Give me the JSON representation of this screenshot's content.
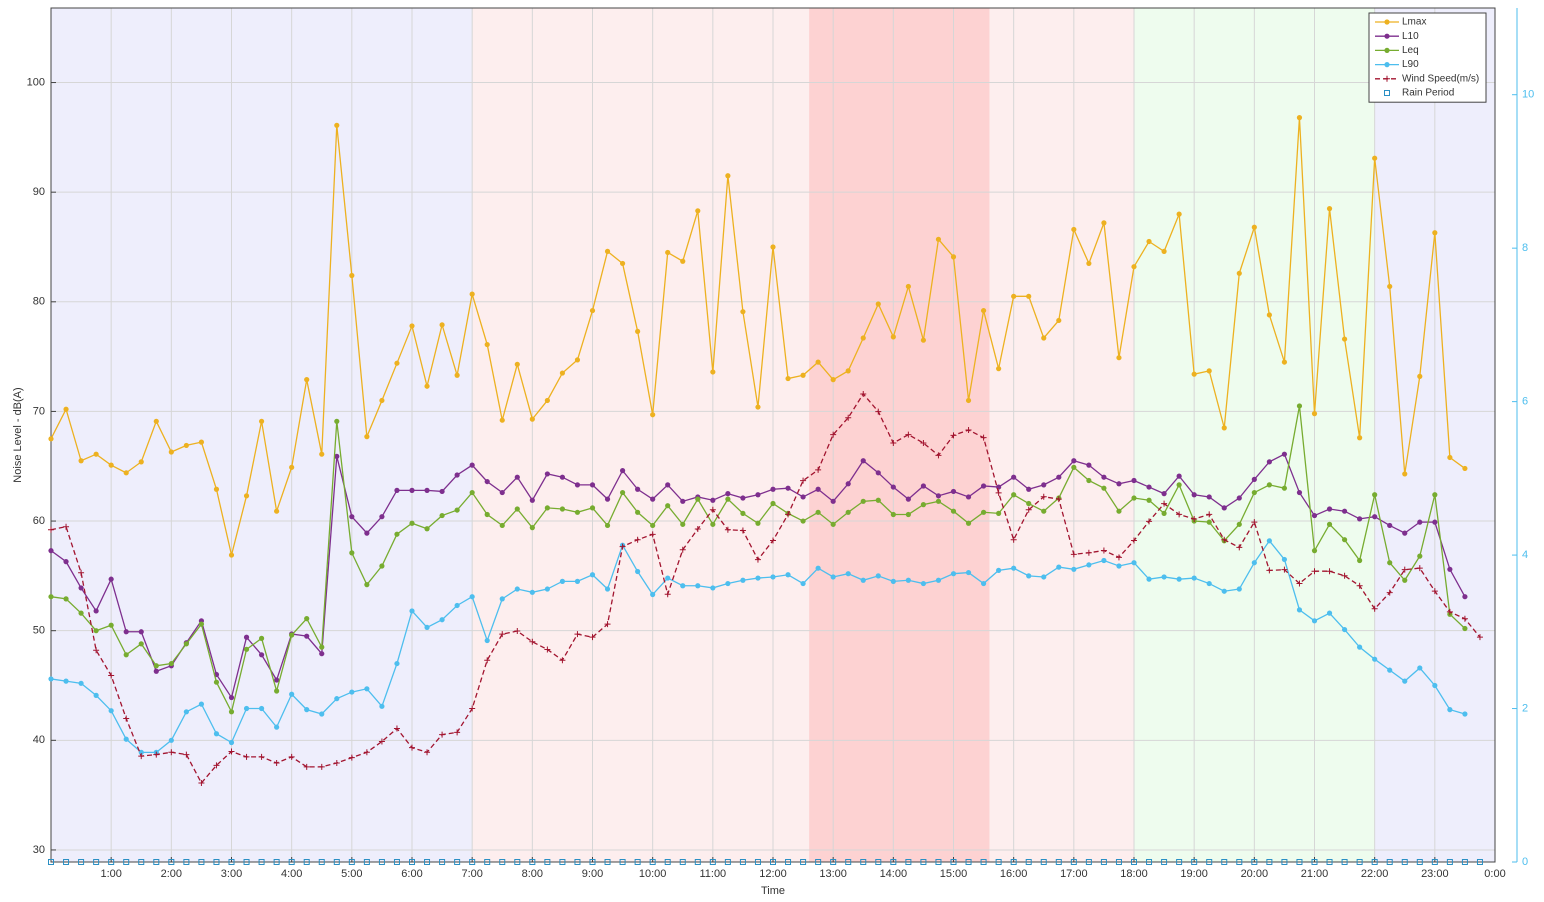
{
  "chart_data": {
    "type": "line",
    "x_label": "Time",
    "y_label": "Noise Level - dB(A)",
    "x": [
      0,
      0.25,
      0.5,
      0.75,
      1,
      1.25,
      1.5,
      1.75,
      2,
      2.25,
      2.5,
      2.75,
      3,
      3.25,
      3.5,
      3.75,
      4,
      4.25,
      4.5,
      4.75,
      5,
      5.25,
      5.5,
      5.75,
      6,
      6.25,
      6.5,
      6.75,
      7,
      7.25,
      7.5,
      7.75,
      8,
      8.25,
      8.5,
      8.75,
      9,
      9.25,
      9.5,
      9.75,
      10,
      10.25,
      10.5,
      10.75,
      11,
      11.25,
      11.5,
      11.75,
      12,
      12.25,
      12.5,
      12.75,
      13,
      13.25,
      13.5,
      13.75,
      14,
      14.25,
      14.5,
      14.75,
      15,
      15.25,
      15.5,
      15.75,
      16,
      16.25,
      16.5,
      16.75,
      17,
      17.25,
      17.5,
      17.75,
      18,
      18.25,
      18.5,
      18.75,
      19,
      19.25,
      19.5,
      19.75,
      20,
      20.25,
      20.5,
      20.75,
      21,
      21.25,
      21.5,
      21.75,
      22,
      22.25,
      22.5,
      22.75,
      23,
      23.25,
      23.5,
      23.75
    ],
    "xlim": [
      0,
      24
    ],
    "xticks": [
      {
        "value": 1,
        "label": "1:00"
      },
      {
        "value": 2,
        "label": "2:00"
      },
      {
        "value": 3,
        "label": "3:00"
      },
      {
        "value": 4,
        "label": "4:00"
      },
      {
        "value": 5,
        "label": "5:00"
      },
      {
        "value": 6,
        "label": "6:00"
      },
      {
        "value": 7,
        "label": "7:00"
      },
      {
        "value": 8,
        "label": "8:00"
      },
      {
        "value": 9,
        "label": "9:00"
      },
      {
        "value": 10,
        "label": "10:00"
      },
      {
        "value": 11,
        "label": "11:00"
      },
      {
        "value": 12,
        "label": "12:00"
      },
      {
        "value": 13,
        "label": "13:00"
      },
      {
        "value": 14,
        "label": "14:00"
      },
      {
        "value": 15,
        "label": "15:00"
      },
      {
        "value": 16,
        "label": "16:00"
      },
      {
        "value": 17,
        "label": "17:00"
      },
      {
        "value": 18,
        "label": "18:00"
      },
      {
        "value": 19,
        "label": "19:00"
      },
      {
        "value": 20,
        "label": "20:00"
      },
      {
        "value": 21,
        "label": "21:00"
      },
      {
        "value": 22,
        "label": "22:00"
      },
      {
        "value": 23,
        "label": "23:00"
      },
      {
        "value": 24,
        "label": "0:00"
      }
    ],
    "ylim": [
      28.9,
      106.8
    ],
    "yticks": [
      30,
      40,
      50,
      60,
      70,
      80,
      90,
      100
    ],
    "y2lim": [
      0,
      11.13
    ],
    "y2ticks": [
      0,
      2,
      4,
      6,
      8,
      10
    ],
    "grid": true,
    "legend": "upper right",
    "periods": [
      {
        "start": 0,
        "end": 7,
        "color": "#eeeefc"
      },
      {
        "start": 7,
        "end": 12.6,
        "color": "#fdeeee"
      },
      {
        "start": 12.6,
        "end": 15.6,
        "color": "#fdd2d2"
      },
      {
        "start": 15.6,
        "end": 18,
        "color": "#fdeeee"
      },
      {
        "start": 18,
        "end": 22,
        "color": "#eefcee"
      },
      {
        "start": 22,
        "end": 24,
        "color": "#eeeefc"
      }
    ],
    "series": [
      {
        "name": "Lmax",
        "color": "#EDB120",
        "marker": "circle",
        "values": [
          67.5,
          70.2,
          65.5,
          66.1,
          65.1,
          64.4,
          65.4,
          69.1,
          66.3,
          66.9,
          67.2,
          62.9,
          56.9,
          62.3,
          69.1,
          60.9,
          64.9,
          72.9,
          66.1,
          96.1,
          82.4,
          67.7,
          71.0,
          74.4,
          77.8,
          72.3,
          77.9,
          73.3,
          80.7,
          76.1,
          69.2,
          74.3,
          69.3,
          71.0,
          73.5,
          74.7,
          79.2,
          84.6,
          83.5,
          77.3,
          69.7,
          84.5,
          83.7,
          88.3,
          73.6,
          91.5,
          79.1,
          70.4,
          85.0,
          73.0,
          73.3,
          74.5,
          72.9,
          73.7,
          76.7,
          79.8,
          76.8,
          81.4,
          76.5,
          85.7,
          84.1,
          71.0,
          79.2,
          73.9,
          80.5,
          80.5,
          76.7,
          78.3,
          86.6,
          83.5,
          87.2,
          74.9,
          83.2,
          85.5,
          84.6,
          88.0,
          73.4,
          73.7,
          68.5,
          82.6,
          86.8,
          78.8,
          74.5,
          96.8,
          69.8,
          88.5,
          76.6,
          67.6,
          93.1,
          81.4,
          64.3,
          73.2,
          86.3,
          65.8,
          64.8,
          null
        ]
      },
      {
        "name": "L10",
        "color": "#7E2F8E",
        "marker": "circle",
        "values": [
          57.3,
          56.3,
          53.9,
          51.8,
          54.7,
          49.9,
          49.9,
          46.3,
          46.8,
          48.9,
          50.9,
          46.0,
          43.9,
          49.4,
          47.8,
          45.5,
          49.7,
          49.5,
          47.9,
          65.9,
          60.4,
          58.9,
          60.4,
          62.8,
          62.8,
          62.8,
          62.7,
          64.2,
          65.1,
          63.6,
          62.6,
          64.0,
          61.9,
          64.3,
          64.0,
          63.3,
          63.3,
          62.0,
          64.6,
          62.9,
          62.0,
          63.3,
          61.8,
          62.2,
          61.9,
          62.5,
          62.1,
          62.4,
          62.9,
          63.0,
          62.2,
          62.9,
          61.8,
          63.4,
          65.5,
          64.4,
          63.1,
          62.0,
          63.2,
          62.3,
          62.7,
          62.2,
          63.2,
          63.1,
          64.0,
          62.9,
          63.3,
          64.0,
          65.5,
          65.1,
          64.0,
          63.4,
          63.7,
          63.1,
          62.5,
          64.1,
          62.4,
          62.2,
          61.2,
          62.1,
          63.8,
          65.4,
          66.1,
          62.6,
          60.5,
          61.1,
          60.9,
          60.2,
          60.4,
          59.6,
          58.9,
          59.9,
          59.9,
          55.6,
          53.1,
          null
        ]
      },
      {
        "name": "Leq",
        "color": "#77AC30",
        "marker": "circle",
        "values": [
          53.1,
          52.9,
          51.6,
          50.0,
          50.5,
          47.8,
          48.8,
          46.8,
          47.0,
          48.8,
          50.6,
          45.3,
          42.6,
          48.3,
          49.3,
          44.5,
          49.6,
          51.1,
          48.5,
          69.1,
          57.1,
          54.2,
          55.9,
          58.8,
          59.8,
          59.3,
          60.5,
          61.0,
          62.6,
          60.6,
          59.6,
          61.1,
          59.4,
          61.2,
          61.1,
          60.8,
          61.2,
          59.6,
          62.6,
          60.8,
          59.6,
          61.4,
          59.7,
          62.0,
          59.7,
          62.0,
          60.7,
          59.8,
          61.6,
          60.7,
          60.0,
          60.8,
          59.7,
          60.8,
          61.8,
          61.9,
          60.6,
          60.6,
          61.5,
          61.8,
          60.9,
          59.8,
          60.8,
          60.7,
          62.4,
          61.6,
          60.9,
          62.1,
          64.9,
          63.7,
          63.0,
          60.9,
          62.1,
          61.9,
          60.7,
          63.3,
          60.0,
          59.9,
          58.2,
          59.7,
          62.6,
          63.3,
          63.0,
          70.5,
          57.3,
          59.7,
          58.3,
          56.4,
          62.4,
          56.2,
          54.6,
          56.8,
          62.4,
          51.5,
          50.2,
          null
        ]
      },
      {
        "name": "L90",
        "color": "#4DBEEE",
        "marker": "circle",
        "values": [
          45.6,
          45.4,
          45.2,
          44.1,
          42.7,
          40.1,
          38.9,
          38.9,
          40.0,
          42.6,
          43.3,
          40.6,
          39.8,
          42.9,
          42.9,
          41.2,
          44.2,
          42.8,
          42.4,
          43.8,
          44.4,
          44.7,
          43.1,
          47.0,
          51.8,
          50.3,
          51.0,
          52.3,
          53.1,
          49.1,
          52.9,
          53.8,
          53.5,
          53.8,
          54.5,
          54.5,
          55.1,
          53.8,
          57.8,
          55.4,
          53.3,
          54.8,
          54.1,
          54.1,
          53.9,
          54.3,
          54.6,
          54.8,
          54.9,
          55.1,
          54.3,
          55.7,
          54.9,
          55.2,
          54.6,
          55.0,
          54.5,
          54.6,
          54.3,
          54.6,
          55.2,
          55.3,
          54.3,
          55.5,
          55.7,
          55.0,
          54.9,
          55.8,
          55.6,
          56.0,
          56.4,
          55.9,
          56.2,
          54.7,
          54.9,
          54.7,
          54.8,
          54.3,
          53.6,
          53.8,
          56.2,
          58.2,
          56.5,
          51.9,
          50.9,
          51.6,
          50.1,
          48.5,
          47.4,
          46.4,
          45.4,
          46.6,
          45.0,
          42.8,
          42.4,
          null
        ]
      },
      {
        "name": "Wind Speed(m/s)",
        "color": "#A2142F",
        "marker": "plus",
        "dashed": true,
        "axis": "y2",
        "values": [
          4.33,
          4.37,
          3.77,
          2.76,
          2.43,
          1.87,
          1.38,
          1.4,
          1.43,
          1.4,
          1.03,
          1.26,
          1.44,
          1.37,
          1.37,
          1.29,
          1.37,
          1.24,
          1.24,
          1.29,
          1.36,
          1.43,
          1.57,
          1.74,
          1.49,
          1.43,
          1.66,
          1.69,
          2.0,
          2.63,
          2.97,
          3.01,
          2.87,
          2.77,
          2.63,
          2.97,
          2.93,
          3.1,
          4.11,
          4.2,
          4.27,
          3.49,
          4.07,
          4.34,
          4.59,
          4.33,
          4.32,
          3.94,
          4.19,
          4.53,
          4.97,
          5.11,
          5.57,
          5.79,
          6.1,
          5.87,
          5.46,
          5.57,
          5.46,
          5.3,
          5.56,
          5.63,
          5.53,
          4.81,
          4.2,
          4.59,
          4.76,
          4.73,
          4.01,
          4.03,
          4.06,
          3.97,
          4.19,
          4.44,
          4.67,
          4.53,
          4.47,
          4.53,
          4.2,
          4.1,
          4.43,
          3.8,
          3.81,
          3.63,
          3.79,
          3.79,
          3.73,
          3.6,
          3.3,
          3.51,
          3.81,
          3.83,
          3.53,
          3.26,
          3.17,
          2.93
        ]
      },
      {
        "name": "Rain Period",
        "color": "#2a8fc4",
        "marker": "square",
        "noline": true,
        "axis": "y2",
        "values": [
          0,
          0,
          0,
          0,
          0,
          0,
          0,
          0,
          0,
          0,
          0,
          0,
          0,
          0,
          0,
          0,
          0,
          0,
          0,
          0,
          0,
          0,
          0,
          0,
          0,
          0,
          0,
          0,
          0,
          0,
          0,
          0,
          0,
          0,
          0,
          0,
          0,
          0,
          0,
          0,
          0,
          0,
          0,
          0,
          0,
          0,
          0,
          0,
          0,
          0,
          0,
          0,
          0,
          0,
          0,
          0,
          0,
          0,
          0,
          0,
          0,
          0,
          0,
          0,
          0,
          0,
          0,
          0,
          0,
          0,
          0,
          0,
          0,
          0,
          0,
          0,
          0,
          0,
          0,
          0,
          0,
          0,
          0,
          0,
          0,
          0,
          0,
          0,
          0,
          0,
          0,
          0,
          0,
          0,
          0,
          0
        ]
      }
    ]
  }
}
